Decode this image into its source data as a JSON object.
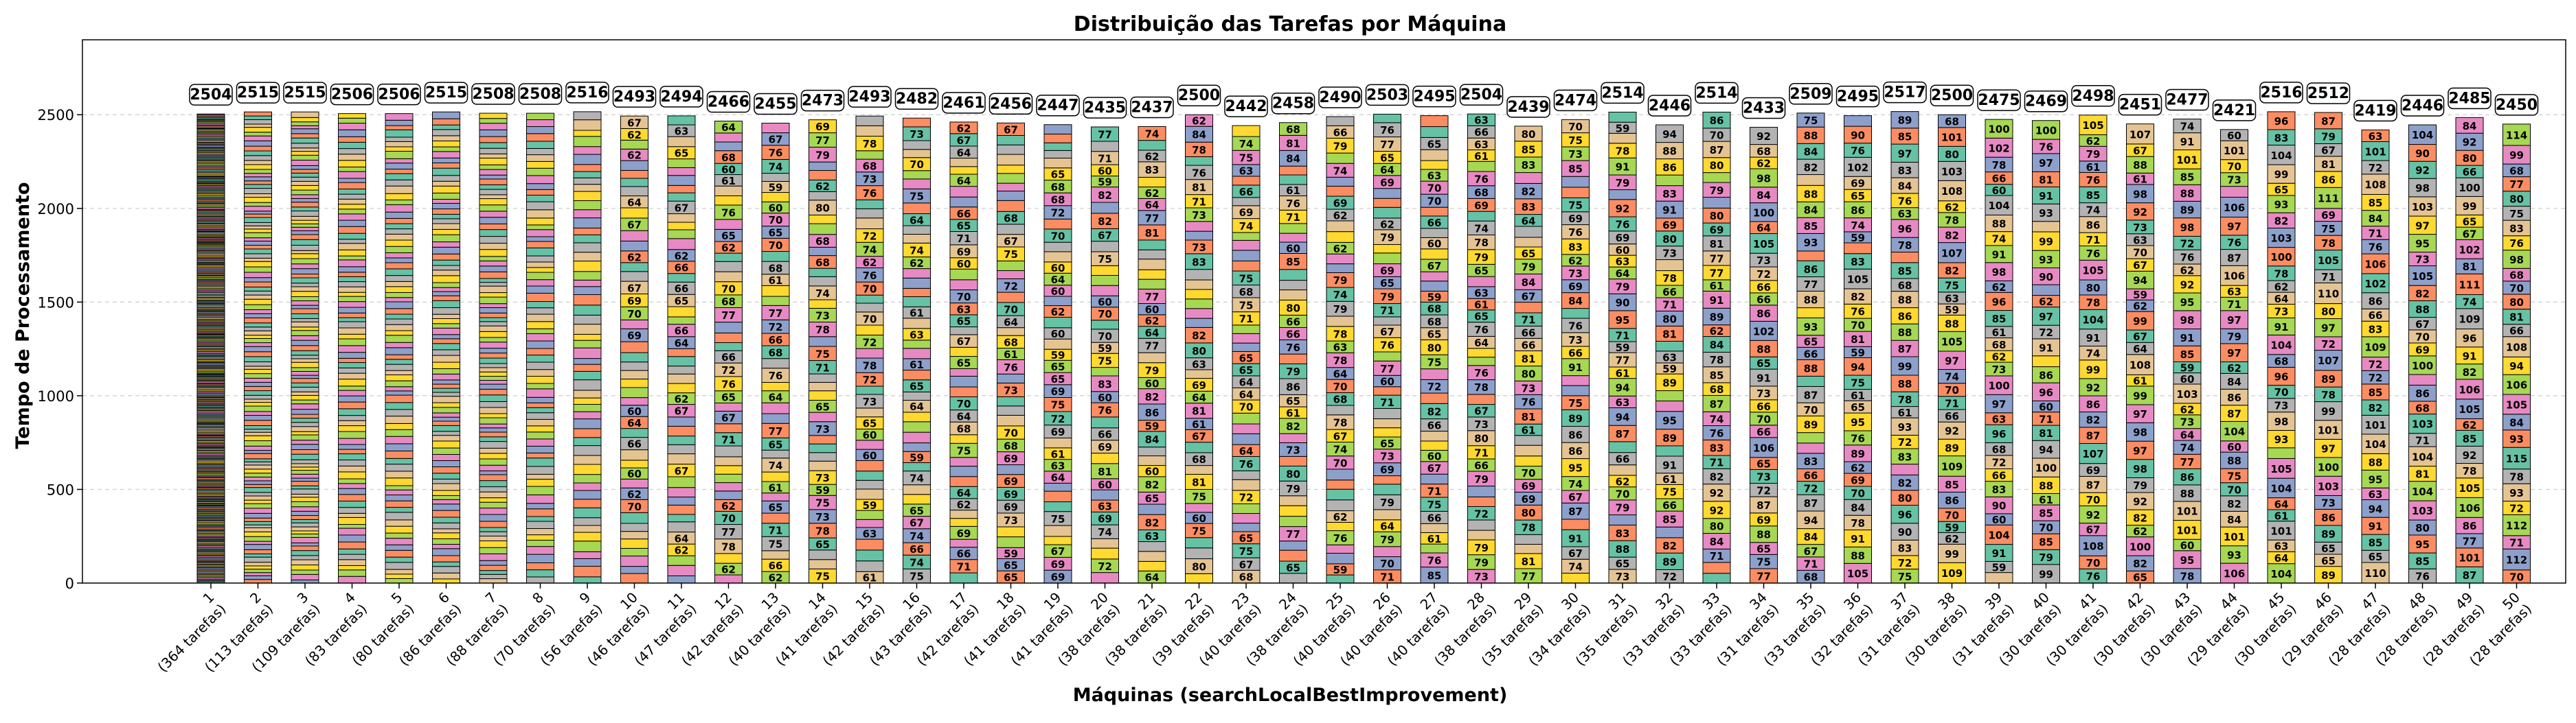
{
  "chart_data": {
    "type": "bar",
    "subtype": "stacked",
    "title": "Distribuição das Tarefas por Máquina",
    "xlabel": "Máquinas (searchLocalBestImprovement)",
    "ylabel": "Tempo de Processamento",
    "ylim": [
      0,
      2900
    ],
    "yticks": [
      0,
      500,
      1000,
      1500,
      2000,
      2500
    ],
    "grid": true,
    "categories": [
      "1",
      "2",
      "3",
      "4",
      "5",
      "6",
      "7",
      "8",
      "9",
      "10",
      "11",
      "12",
      "13",
      "14",
      "15",
      "16",
      "17",
      "18",
      "19",
      "20",
      "21",
      "22",
      "23",
      "24",
      "25",
      "26",
      "27",
      "28",
      "29",
      "30",
      "31",
      "32",
      "33",
      "34",
      "35",
      "36",
      "37",
      "38",
      "39",
      "40",
      "41",
      "42",
      "43",
      "44",
      "45",
      "46",
      "47",
      "48",
      "49",
      "50"
    ],
    "task_counts": [
      364,
      113,
      109,
      83,
      80,
      86,
      88,
      70,
      56,
      46,
      47,
      42,
      40,
      41,
      42,
      43,
      42,
      41,
      41,
      38,
      38,
      39,
      40,
      38,
      40,
      40,
      40,
      38,
      35,
      34,
      35,
      33,
      33,
      31,
      33,
      32,
      31,
      30,
      31,
      30,
      30,
      30,
      30,
      29,
      30,
      29,
      28,
      28,
      28,
      28
    ],
    "task_count_labels": [
      "(364 tarefas)",
      "(113 tarefas)",
      "(109 tarefas)",
      "(83 tarefas)",
      "(80 tarefas)",
      "(86 tarefas)",
      "(88 tarefas)",
      "(70 tarefas)",
      "(56 tarefas)",
      "(46 tarefas)",
      "(47 tarefas)",
      "(42 tarefas)",
      "(40 tarefas)",
      "(41 tarefas)",
      "(42 tarefas)",
      "(43 tarefas)",
      "(42 tarefas)",
      "(41 tarefas)",
      "(41 tarefas)",
      "(38 tarefas)",
      "(38 tarefas)",
      "(39 tarefas)",
      "(40 tarefas)",
      "(38 tarefas)",
      "(40 tarefas)",
      "(40 tarefas)",
      "(40 tarefas)",
      "(38 tarefas)",
      "(35 tarefas)",
      "(34 tarefas)",
      "(35 tarefas)",
      "(33 tarefas)",
      "(33 tarefas)",
      "(31 tarefas)",
      "(33 tarefas)",
      "(32 tarefas)",
      "(31 tarefas)",
      "(30 tarefas)",
      "(31 tarefas)",
      "(30 tarefas)",
      "(30 tarefas)",
      "(30 tarefas)",
      "(30 tarefas)",
      "(29 tarefas)",
      "(30 tarefas)",
      "(29 tarefas)",
      "(28 tarefas)",
      "(28 tarefas)",
      "(28 tarefas)",
      "(28 tarefas)"
    ],
    "totals": [
      2504,
      2515,
      2515,
      2506,
      2506,
      2515,
      2508,
      2508,
      2516,
      2493,
      2494,
      2466,
      2455,
      2473,
      2493,
      2482,
      2461,
      2456,
      2447,
      2435,
      2437,
      2500,
      2442,
      2458,
      2490,
      2503,
      2495,
      2504,
      2439,
      2474,
      2514,
      2446,
      2514,
      2433,
      2509,
      2495,
      2517,
      2500,
      2475,
      2469,
      2498,
      2451,
      2477,
      2421,
      2516,
      2512,
      2419,
      2446,
      2485,
      2450
    ],
    "segment_colors": [
      "#66c2a5",
      "#fc8d62",
      "#8da0cb",
      "#e78ac3",
      "#a6d854",
      "#ffd92f",
      "#e5c494",
      "#b3b3b3"
    ],
    "segment_palette_names": [
      "teal",
      "orange",
      "blue",
      "pink",
      "green",
      "yellow",
      "tan",
      "gray"
    ]
  }
}
